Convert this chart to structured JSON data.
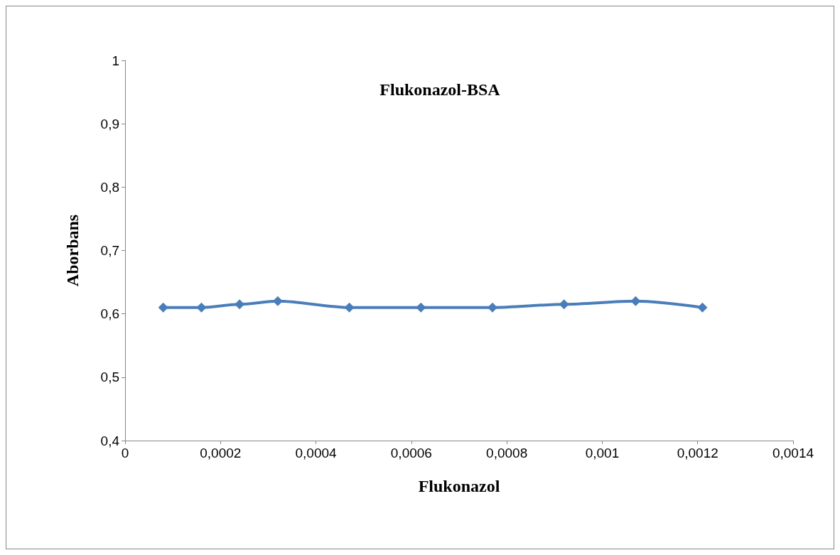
{
  "chart_data": {
    "type": "line",
    "title": "Flukonazol-BSA",
    "xlabel": "Flukonazol",
    "ylabel": "Aborbans",
    "x": [
      8e-05,
      0.00016,
      0.00024,
      0.00032,
      0.00047,
      0.00062,
      0.00077,
      0.00092,
      0.00107,
      0.00121
    ],
    "series": [
      {
        "color": "#4a7ebb",
        "values": [
          0.61,
          0.61,
          0.615,
          0.62,
          0.61,
          0.61,
          0.61,
          0.615,
          0.62,
          0.61
        ]
      }
    ],
    "xlim": [
      0,
      0.0014
    ],
    "xticks": [
      0,
      {
        "value": 0.0002,
        "label": "0,0002"
      },
      {
        "value": 0.0004,
        "label": "0,0004"
      },
      {
        "value": 0.0006,
        "label": "0,0006"
      },
      {
        "value": 0.0008,
        "label": "0,0008"
      },
      {
        "value": 0.001,
        "label": "0,001"
      },
      {
        "value": 0.0012,
        "label": "0,0012"
      },
      {
        "value": 0.0014,
        "label": "0,0014"
      }
    ],
    "ylim": [
      0.4,
      1
    ],
    "yticks": [
      {
        "value": 0.4,
        "label": "0,4"
      },
      {
        "value": 0.5,
        "label": "0,5"
      },
      {
        "value": 0.6,
        "label": "0,6"
      },
      {
        "value": 0.7,
        "label": "0,7"
      },
      {
        "value": 0.8,
        "label": "0,8"
      },
      {
        "value": 0.9,
        "label": "0,9"
      },
      1
    ],
    "grid": false,
    "marker": "diamond",
    "line_style": "solid"
  }
}
